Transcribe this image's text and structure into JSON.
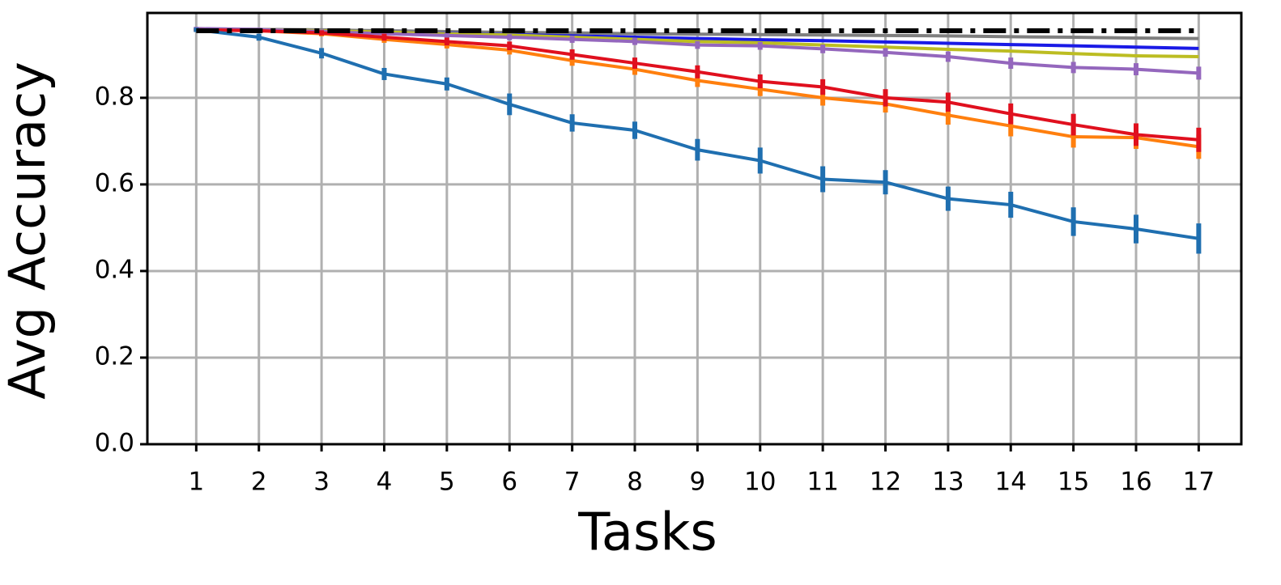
{
  "chart_data": {
    "type": "line",
    "x_label": "Tasks",
    "y_label": "Avg Accuracy",
    "x": [
      1,
      2,
      3,
      4,
      5,
      6,
      7,
      8,
      9,
      10,
      11,
      12,
      13,
      14,
      15,
      16,
      17
    ],
    "xlim": [
      0.22,
      17.68
    ],
    "xticks": [
      1,
      2,
      3,
      4,
      5,
      6,
      7,
      8,
      9,
      10,
      11,
      12,
      13,
      14,
      15,
      16,
      17
    ],
    "ylim": [
      0,
      0.996
    ],
    "yticks": [
      {
        "value": 0,
        "label": "0.0"
      },
      0.2,
      0.4,
      0.6,
      0.8
    ],
    "grid": true,
    "series": [
      {
        "color": "#7f7f7f",
        "values": [
          0.958,
          0.958,
          0.957,
          0.955,
          0.953,
          0.951,
          0.95,
          0.948,
          0.947,
          0.946,
          0.945,
          0.944,
          0.943,
          0.941,
          0.94,
          0.938,
          0.937
        ]
      },
      {
        "color": "#1a1ae6",
        "values": [
          0.958,
          0.958,
          0.955,
          0.952,
          0.949,
          0.946,
          0.943,
          0.94,
          0.937,
          0.934,
          0.932,
          0.929,
          0.926,
          0.923,
          0.92,
          0.917,
          0.914
        ]
      },
      {
        "color": "#bcbd22",
        "values": [
          0.958,
          0.958,
          0.955,
          0.952,
          0.948,
          0.945,
          0.94,
          0.935,
          0.93,
          0.927,
          0.922,
          0.917,
          0.912,
          0.908,
          0.902,
          0.897,
          0.895
        ]
      },
      {
        "color": "#9467bd",
        "values": [
          0.96,
          0.958,
          0.953,
          0.948,
          0.944,
          0.94,
          0.935,
          0.93,
          0.922,
          0.92,
          0.913,
          0.905,
          0.895,
          0.88,
          0.87,
          0.866,
          0.857
        ],
        "errors": [
          0.004,
          0.004,
          0.005,
          0.006,
          0.006,
          0.007,
          0.008,
          0.008,
          0.009,
          0.009,
          0.01,
          0.01,
          0.012,
          0.013,
          0.013,
          0.014,
          0.015
        ]
      },
      {
        "color": "#ff7f0e",
        "values": [
          0.957,
          0.955,
          0.948,
          0.935,
          0.923,
          0.91,
          0.886,
          0.866,
          0.84,
          0.82,
          0.8,
          0.786,
          0.76,
          0.735,
          0.71,
          0.708,
          0.687
        ],
        "errors": [
          0.004,
          0.005,
          0.006,
          0.008,
          0.009,
          0.01,
          0.012,
          0.013,
          0.015,
          0.016,
          0.018,
          0.02,
          0.022,
          0.024,
          0.025,
          0.026,
          0.028
        ]
      },
      {
        "color": "#e0101e",
        "values": [
          0.957,
          0.955,
          0.95,
          0.94,
          0.93,
          0.92,
          0.9,
          0.88,
          0.86,
          0.838,
          0.825,
          0.8,
          0.79,
          0.763,
          0.738,
          0.715,
          0.703
        ],
        "errors": [
          0.004,
          0.005,
          0.006,
          0.008,
          0.009,
          0.01,
          0.012,
          0.013,
          0.015,
          0.016,
          0.018,
          0.02,
          0.022,
          0.024,
          0.025,
          0.026,
          0.028
        ]
      },
      {
        "color": "#1f6fb0",
        "values": [
          0.957,
          0.94,
          0.903,
          0.855,
          0.832,
          0.785,
          0.742,
          0.725,
          0.68,
          0.655,
          0.612,
          0.605,
          0.567,
          0.553,
          0.514,
          0.497,
          0.475
        ],
        "errors": [
          0.005,
          0.008,
          0.012,
          0.014,
          0.015,
          0.025,
          0.02,
          0.02,
          0.025,
          0.03,
          0.03,
          0.028,
          0.028,
          0.03,
          0.033,
          0.033,
          0.035
        ]
      },
      {
        "color": "#000000",
        "style": "dashdot",
        "values": [
          0.955,
          0.955,
          0.955,
          0.955,
          0.955,
          0.955,
          0.955,
          0.955,
          0.955,
          0.955,
          0.955,
          0.955,
          0.955,
          0.955,
          0.955,
          0.955,
          0.955
        ]
      }
    ]
  }
}
